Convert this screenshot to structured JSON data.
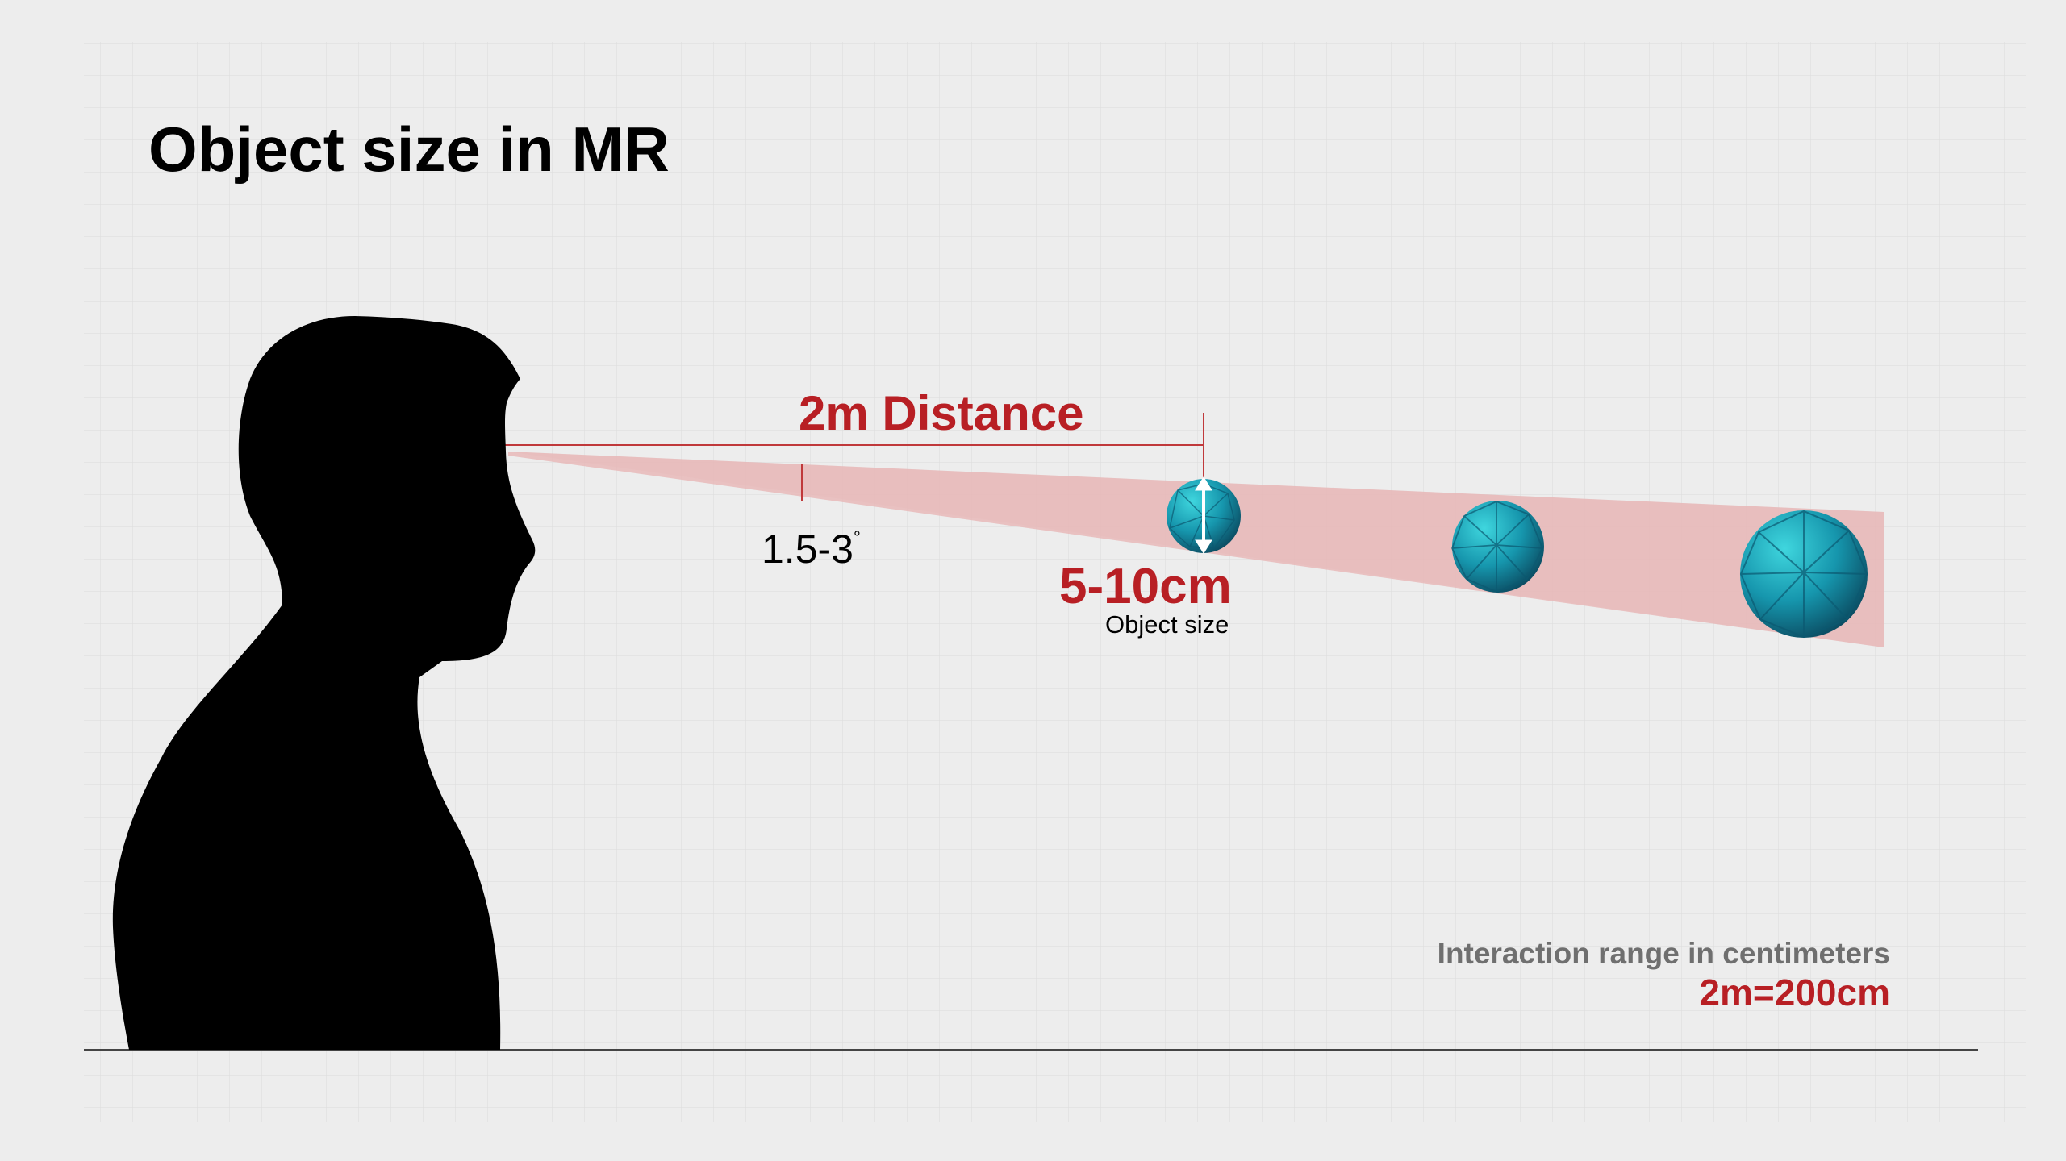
{
  "title": "Object size in MR",
  "distance_label": "2m Distance",
  "angle_label": "1.5-3",
  "angle_unit": "°",
  "object_size_value": "5-10cm",
  "object_size_caption": "Object size",
  "interaction_range_caption": "Interaction range in centimeters",
  "interaction_range_value": "2m=200cm",
  "colors": {
    "accent": "#b81f24",
    "cone_fill": "#e9b7b7",
    "silhouette": "#000000",
    "sphere": "#1f9fb0",
    "background": "#ededed",
    "grid": "#dcdcdc"
  }
}
